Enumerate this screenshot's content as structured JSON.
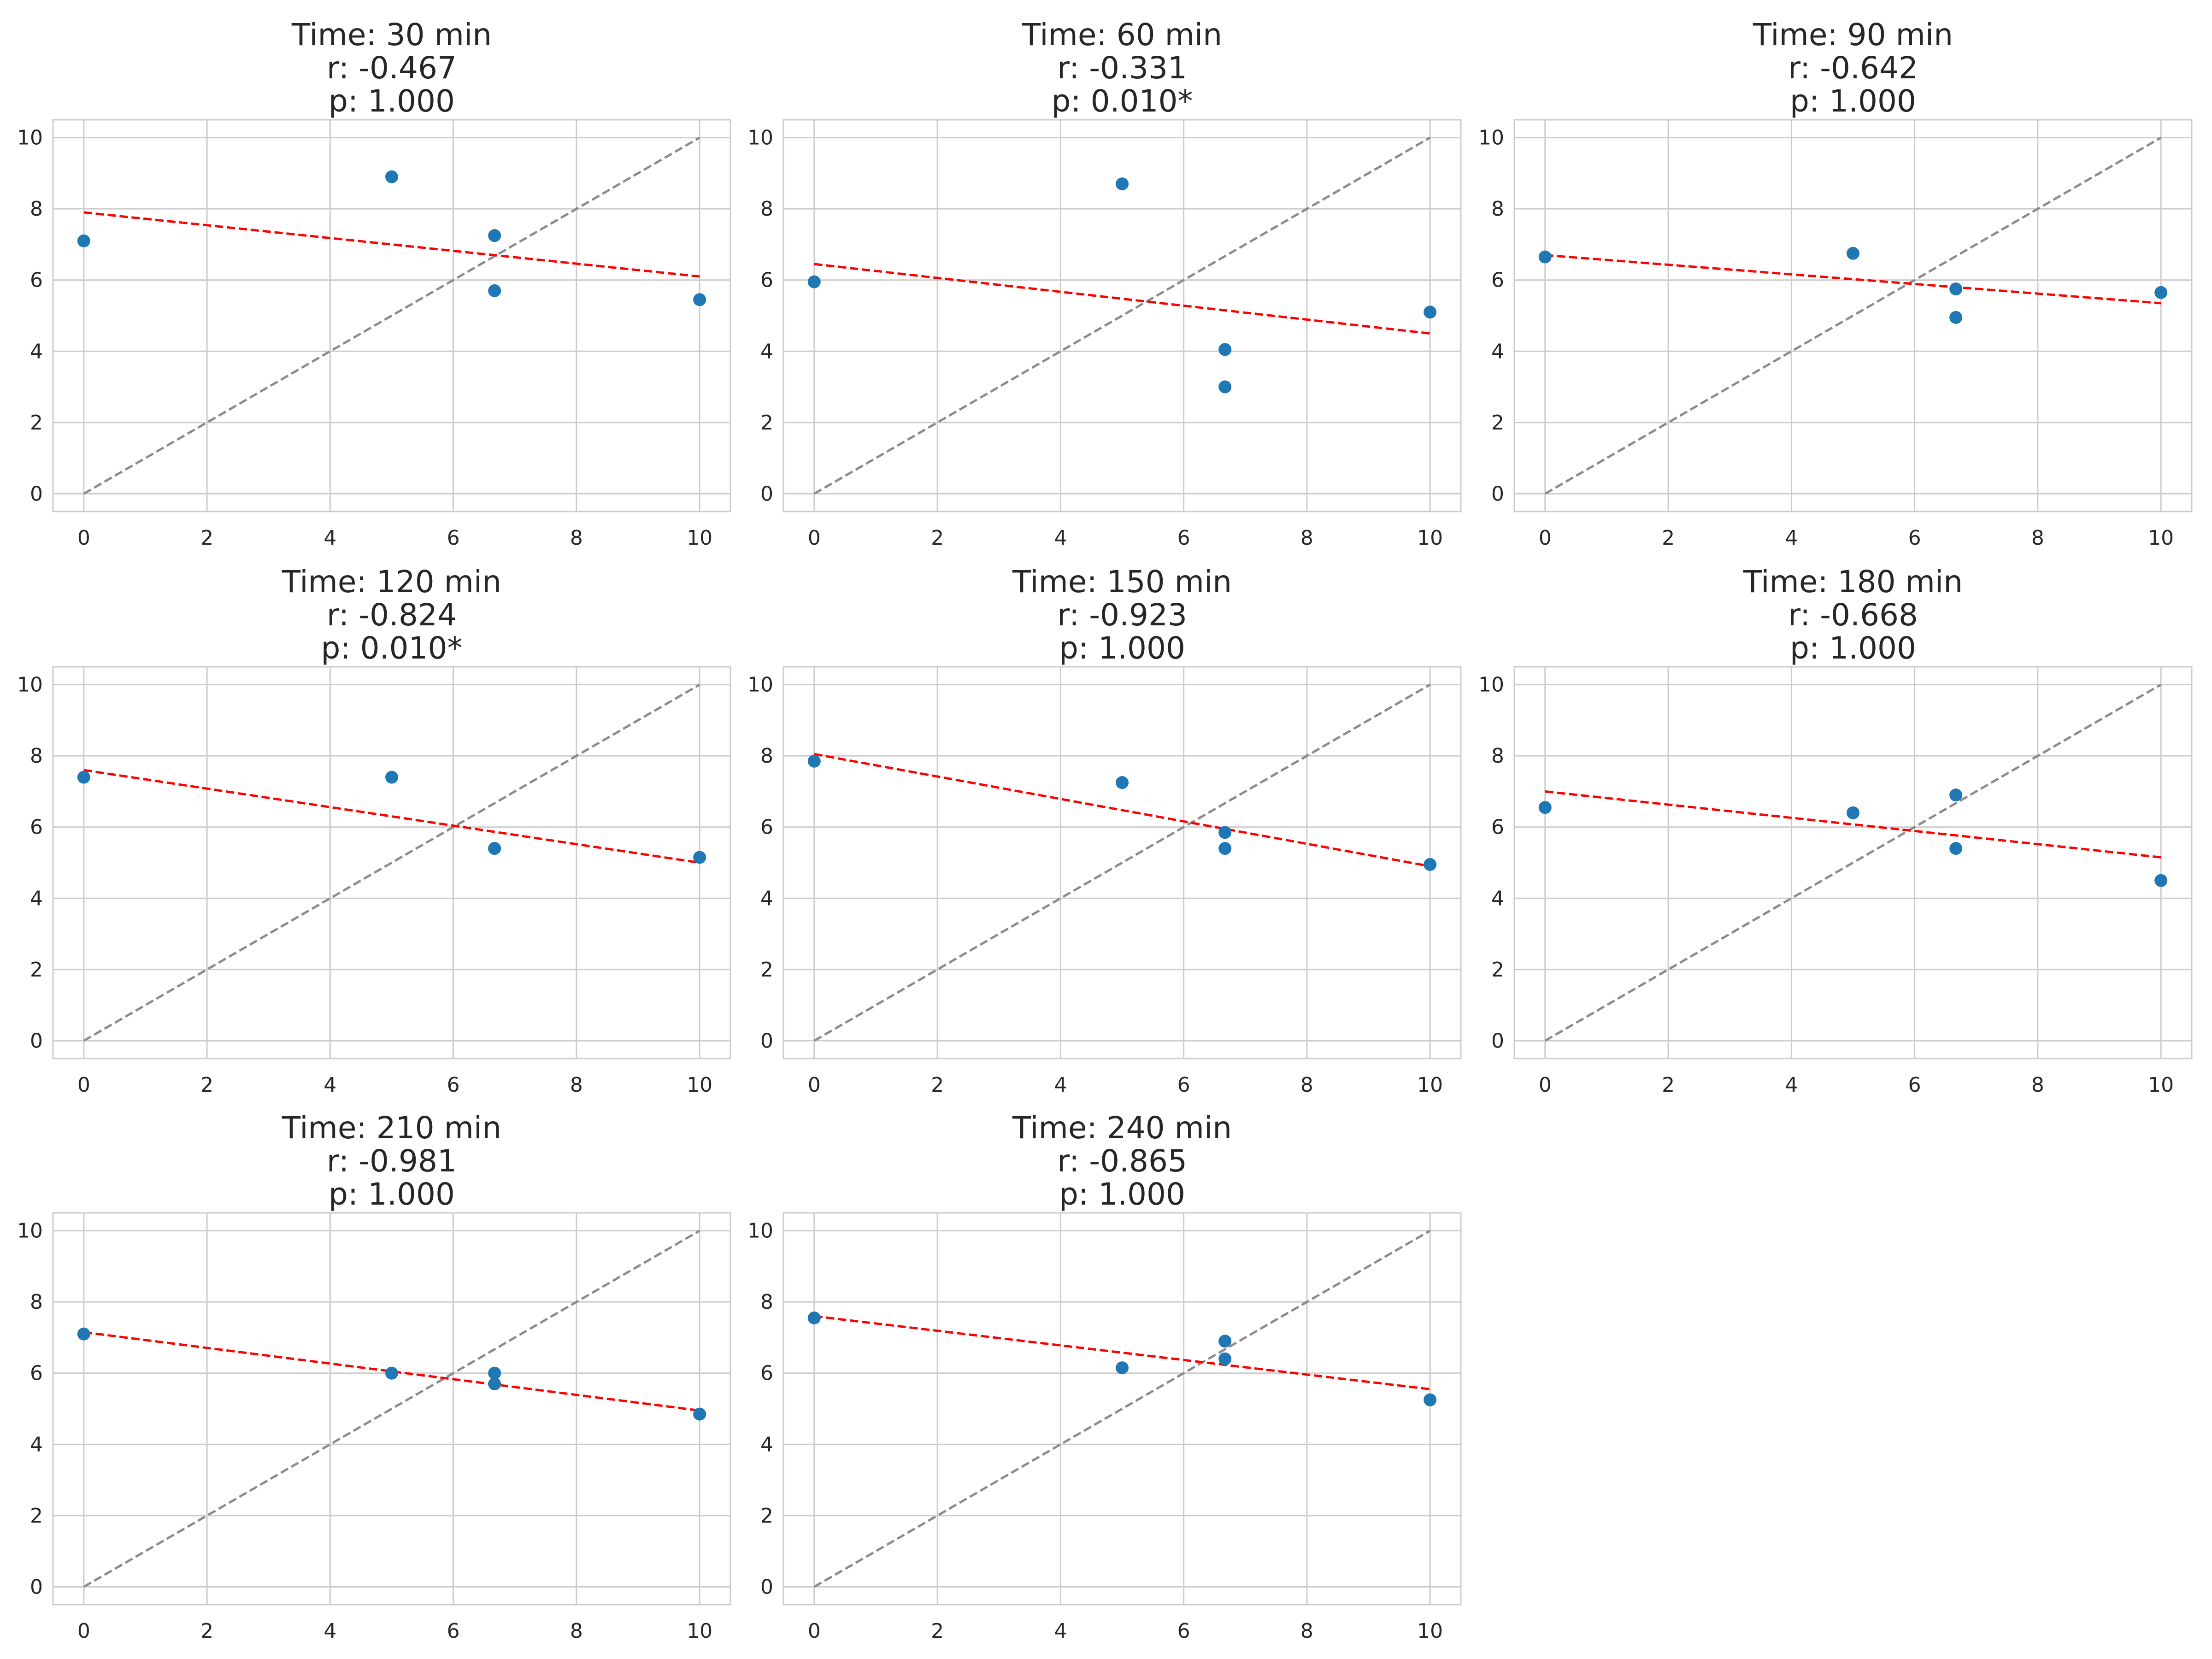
{
  "colors": {
    "points": "#1f77b4",
    "regression_line": "#ff0000",
    "identity_line": "#8c8c8c",
    "grid": "#cccccc",
    "axes_frame": "#cccccc",
    "background": "#ffffff"
  },
  "chart_data": [
    {
      "type": "scatter",
      "title": [
        "Time: 30 min",
        "r: -0.467",
        "p: 1.000"
      ],
      "xlim": [
        -0.5,
        10.5
      ],
      "ylim": [
        -0.5,
        10.5
      ],
      "xticks": [
        0,
        2,
        4,
        6,
        8,
        10
      ],
      "yticks": [
        0,
        2,
        4,
        6,
        8,
        10
      ],
      "grid": true,
      "points": [
        [
          0,
          7.1
        ],
        [
          5,
          8.9
        ],
        [
          6.67,
          7.25
        ],
        [
          6.67,
          5.7
        ],
        [
          10,
          5.45
        ]
      ],
      "regression_line": [
        [
          0,
          7.9
        ],
        [
          10,
          6.1
        ]
      ],
      "identity_line": [
        [
          0,
          0
        ],
        [
          10,
          10
        ]
      ]
    },
    {
      "type": "scatter",
      "title": [
        "Time: 60 min",
        "r: -0.331",
        "p: 0.010*"
      ],
      "xlim": [
        -0.5,
        10.5
      ],
      "ylim": [
        -0.5,
        10.5
      ],
      "xticks": [
        0,
        2,
        4,
        6,
        8,
        10
      ],
      "yticks": [
        0,
        2,
        4,
        6,
        8,
        10
      ],
      "grid": true,
      "points": [
        [
          0,
          5.95
        ],
        [
          5,
          8.7
        ],
        [
          6.67,
          4.05
        ],
        [
          6.67,
          3.0
        ],
        [
          10,
          5.1
        ]
      ],
      "regression_line": [
        [
          0,
          6.45
        ],
        [
          10,
          4.5
        ]
      ],
      "identity_line": [
        [
          0,
          0
        ],
        [
          10,
          10
        ]
      ]
    },
    {
      "type": "scatter",
      "title": [
        "Time: 90 min",
        "r: -0.642",
        "p: 1.000"
      ],
      "xlim": [
        -0.5,
        10.5
      ],
      "ylim": [
        -0.5,
        10.5
      ],
      "xticks": [
        0,
        2,
        4,
        6,
        8,
        10
      ],
      "yticks": [
        0,
        2,
        4,
        6,
        8,
        10
      ],
      "grid": true,
      "points": [
        [
          0,
          6.65
        ],
        [
          5,
          6.75
        ],
        [
          6.67,
          5.75
        ],
        [
          6.67,
          4.95
        ],
        [
          10,
          5.65
        ]
      ],
      "regression_line": [
        [
          0,
          6.7
        ],
        [
          10,
          5.35
        ]
      ],
      "identity_line": [
        [
          0,
          0
        ],
        [
          10,
          10
        ]
      ]
    },
    {
      "type": "scatter",
      "title": [
        "Time: 120 min",
        "r: -0.824",
        "p: 0.010*"
      ],
      "xlim": [
        -0.5,
        10.5
      ],
      "ylim": [
        -0.5,
        10.5
      ],
      "xticks": [
        0,
        2,
        4,
        6,
        8,
        10
      ],
      "yticks": [
        0,
        2,
        4,
        6,
        8,
        10
      ],
      "grid": true,
      "points": [
        [
          0,
          7.4
        ],
        [
          5,
          7.4
        ],
        [
          6.67,
          5.4
        ],
        [
          6.67,
          5.4
        ],
        [
          10,
          5.15
        ]
      ],
      "regression_line": [
        [
          0,
          7.6
        ],
        [
          10,
          5.0
        ]
      ],
      "identity_line": [
        [
          0,
          0
        ],
        [
          10,
          10
        ]
      ]
    },
    {
      "type": "scatter",
      "title": [
        "Time: 150 min",
        "r: -0.923",
        "p: 1.000"
      ],
      "xlim": [
        -0.5,
        10.5
      ],
      "ylim": [
        -0.5,
        10.5
      ],
      "xticks": [
        0,
        2,
        4,
        6,
        8,
        10
      ],
      "yticks": [
        0,
        2,
        4,
        6,
        8,
        10
      ],
      "grid": true,
      "points": [
        [
          0,
          7.85
        ],
        [
          5,
          7.25
        ],
        [
          6.67,
          5.85
        ],
        [
          6.67,
          5.4
        ],
        [
          10,
          4.95
        ]
      ],
      "regression_line": [
        [
          0,
          8.05
        ],
        [
          10,
          4.9
        ]
      ],
      "identity_line": [
        [
          0,
          0
        ],
        [
          10,
          10
        ]
      ]
    },
    {
      "type": "scatter",
      "title": [
        "Time: 180 min",
        "r: -0.668",
        "p: 1.000"
      ],
      "xlim": [
        -0.5,
        10.5
      ],
      "ylim": [
        -0.5,
        10.5
      ],
      "xticks": [
        0,
        2,
        4,
        6,
        8,
        10
      ],
      "yticks": [
        0,
        2,
        4,
        6,
        8,
        10
      ],
      "grid": true,
      "points": [
        [
          0,
          6.55
        ],
        [
          5,
          6.4
        ],
        [
          6.67,
          6.9
        ],
        [
          6.67,
          5.4
        ],
        [
          10,
          4.5
        ]
      ],
      "regression_line": [
        [
          0,
          7.0
        ],
        [
          10,
          5.15
        ]
      ],
      "identity_line": [
        [
          0,
          0
        ],
        [
          10,
          10
        ]
      ]
    },
    {
      "type": "scatter",
      "title": [
        "Time: 210 min",
        "r: -0.981",
        "p: 1.000"
      ],
      "xlim": [
        -0.5,
        10.5
      ],
      "ylim": [
        -0.5,
        10.5
      ],
      "xticks": [
        0,
        2,
        4,
        6,
        8,
        10
      ],
      "yticks": [
        0,
        2,
        4,
        6,
        8,
        10
      ],
      "grid": true,
      "points": [
        [
          0,
          7.1
        ],
        [
          5,
          6.0
        ],
        [
          6.67,
          6.0
        ],
        [
          6.67,
          5.7
        ],
        [
          10,
          4.85
        ]
      ],
      "regression_line": [
        [
          0,
          7.15
        ],
        [
          10,
          4.95
        ]
      ],
      "identity_line": [
        [
          0,
          0
        ],
        [
          10,
          10
        ]
      ]
    },
    {
      "type": "scatter",
      "title": [
        "Time: 240 min",
        "r: -0.865",
        "p: 1.000"
      ],
      "xlim": [
        -0.5,
        10.5
      ],
      "ylim": [
        -0.5,
        10.5
      ],
      "xticks": [
        0,
        2,
        4,
        6,
        8,
        10
      ],
      "yticks": [
        0,
        2,
        4,
        6,
        8,
        10
      ],
      "grid": true,
      "points": [
        [
          0,
          7.55
        ],
        [
          5,
          6.15
        ],
        [
          6.67,
          6.9
        ],
        [
          6.67,
          6.4
        ],
        [
          10,
          5.25
        ]
      ],
      "regression_line": [
        [
          0,
          7.6
        ],
        [
          10,
          5.55
        ]
      ],
      "identity_line": [
        [
          0,
          0
        ],
        [
          10,
          10
        ]
      ]
    }
  ]
}
